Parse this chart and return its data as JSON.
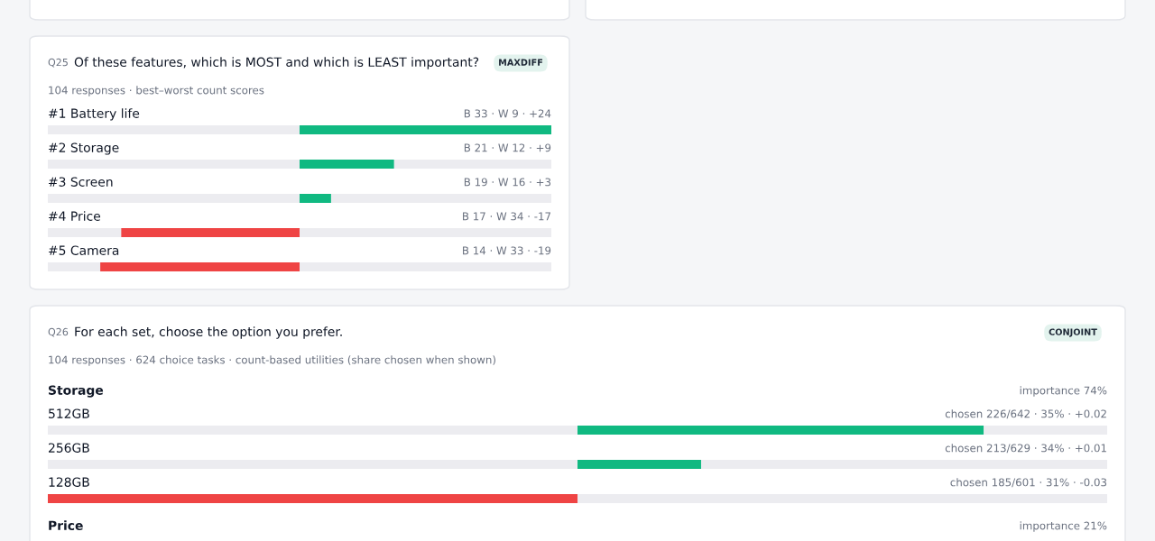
{
  "chart_data": [
    {
      "type": "bar",
      "orientation": "horizontal",
      "title": "Of these features, which is MOST and which is LEAST important?",
      "subtitle": "104 responses · best–worst count scores",
      "annotations": [
        "Q25",
        "MAXDIFF"
      ],
      "categories": [
        "#1 Battery life",
        "#2 Storage",
        "#3 Screen",
        "#4 Price",
        "#5 Camera"
      ],
      "values": [
        24,
        9,
        3,
        -17,
        -19
      ],
      "colors": [
        "#10b981",
        "#10b981",
        "#10b981",
        "#ef4444",
        "#ef4444"
      ],
      "value_labels": [
        "B 33 · W 9 · +24",
        "B 21 · W 12 · +9",
        "B 19 · W 16 · +3",
        "B 17 · W 34 · -17",
        "B 14 · W 33 · -19"
      ],
      "xlim": [
        -24,
        24
      ],
      "tick_labels": "y"
    },
    {
      "type": "bar",
      "orientation": "horizontal",
      "title": "For each set, choose the option you prefer.",
      "subtitle": "104 responses · 624 choice tasks · count-based utilities (share chosen when shown)",
      "annotations": [
        "Q26",
        "CONJOINT",
        "Storage",
        "importance 74%",
        "Price",
        "importance 21%"
      ],
      "categories": [
        "512GB",
        "256GB",
        "128GB"
      ],
      "values": [
        0.023,
        0.007,
        -0.03
      ],
      "colors": [
        "#10b981",
        "#10b981",
        "#ef4444"
      ],
      "value_labels": [
        "chosen 226/642 · 35% · +0.02",
        "chosen 213/629 · 34% · +0.01",
        "chosen 185/601 · 31% · -0.03"
      ],
      "xlim": [
        -0.03,
        0.03
      ],
      "tick_labels": "y"
    }
  ]
}
